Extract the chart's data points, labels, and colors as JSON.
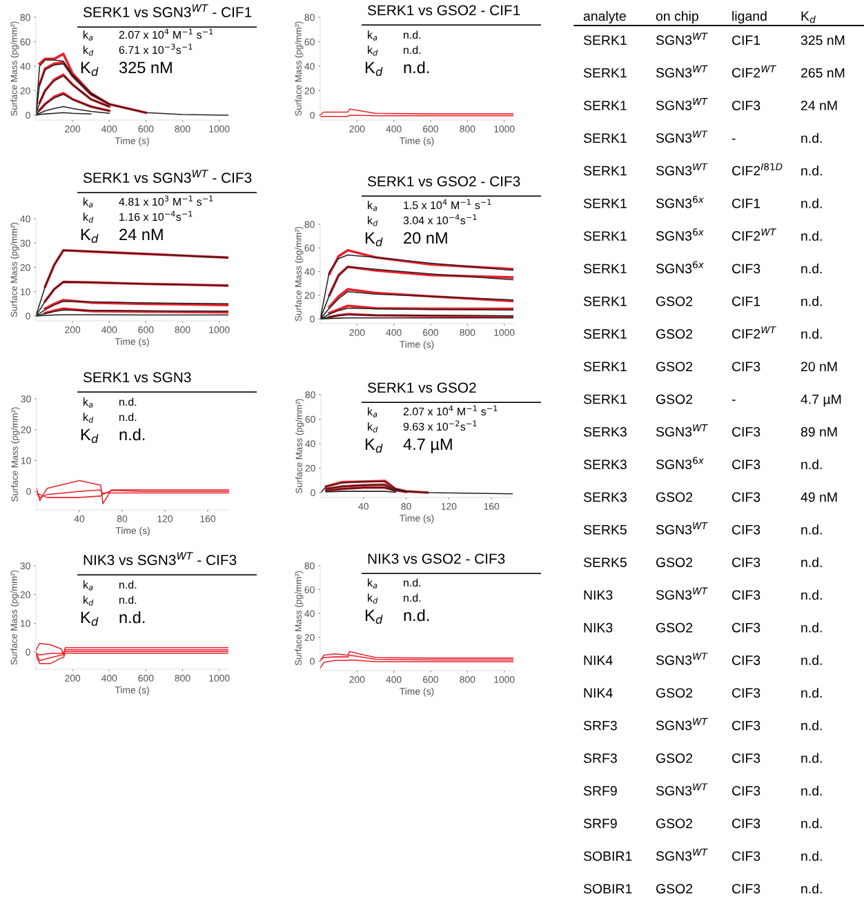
{
  "chart_data": [
    {
      "type": "line",
      "title": "SERK1 vs SGN3$^{WT}$ - CIF1",
      "xlabel": "Time (s)",
      "ylabel": "Surface Mass (pg/mm²)",
      "xlim": [
        0,
        1050
      ],
      "ylim": [
        -4,
        80
      ],
      "xticks": [
        200,
        400,
        600,
        800,
        1000
      ],
      "yticks": [
        0,
        20,
        40,
        60,
        80
      ],
      "annotations": [
        "k$_{a}$",
        "2.07 x 10$^{4}$ M$^{−1}$ s$^{−1}$",
        "k$_{d}$",
        "6.71 x 10$^{−3}$s$^{−1}$",
        "K$_{d}$",
        "325 nM"
      ],
      "x": [
        0,
        20,
        50,
        100,
        150,
        200,
        300,
        400,
        600,
        800,
        1050
      ],
      "series": [
        {
          "color": "#e8202a",
          "x": [
            20,
            50,
            100,
            150,
            200,
            300,
            400,
            600
          ],
          "values": [
            42,
            46,
            46,
            50,
            34,
            18,
            9,
            2
          ]
        },
        {
          "color": "#e8202a",
          "x": [
            20,
            50,
            100,
            150,
            200,
            300,
            400
          ],
          "values": [
            25,
            38,
            42,
            43,
            32,
            17,
            9
          ]
        },
        {
          "color": "#e8202a",
          "x": [
            20,
            50,
            100,
            150,
            200,
            300,
            400
          ],
          "values": [
            10,
            20,
            29,
            33,
            25,
            13,
            7
          ]
        },
        {
          "color": "#e8202a",
          "x": [
            20,
            50,
            100,
            150,
            200,
            300,
            400
          ],
          "values": [
            4,
            9,
            15,
            18,
            13,
            7,
            3.5
          ]
        },
        {
          "color": "#231f20",
          "values": [
            0,
            40,
            45,
            45,
            44,
            33,
            18,
            9,
            2,
            0.5,
            0
          ]
        },
        {
          "color": "#231f20",
          "values": [
            0,
            25,
            37,
            41,
            42,
            32,
            17,
            9,
            null,
            null,
            null
          ]
        },
        {
          "color": "#231f20",
          "values": [
            0,
            10,
            20,
            28,
            32,
            25,
            13,
            7,
            null,
            null,
            null
          ]
        },
        {
          "color": "#231f20",
          "values": [
            0,
            4,
            9,
            14,
            17,
            13,
            7,
            3.5,
            null,
            null,
            null
          ]
        },
        {
          "color": "#231f20",
          "values": [
            0,
            1.5,
            3.5,
            5.5,
            7,
            5.5,
            3,
            1.5,
            null,
            null,
            null
          ]
        },
        {
          "color": "#231f20",
          "values": [
            0,
            0.5,
            1,
            1.5,
            2,
            1.5,
            1,
            null,
            null,
            null,
            null
          ]
        }
      ]
    },
    {
      "type": "line",
      "title": "SERK1 vs GSO2 - CIF1",
      "xlabel": "Time (s)",
      "ylabel": "Surface Mass (pg/mm²)",
      "xlim": [
        0,
        1050
      ],
      "ylim": [
        -4,
        80
      ],
      "xticks": [
        200,
        400,
        600,
        800,
        1000
      ],
      "yticks": [
        0,
        20,
        40,
        60,
        80
      ],
      "annotations": [
        "k$_{a}$",
        "n.d.",
        "k$_{d}$",
        "n.d.",
        "K$_{d}$",
        "n.d."
      ],
      "x": [
        0,
        20,
        100,
        150,
        160,
        300,
        600,
        1050
      ],
      "series": [
        {
          "color": "#e8202a",
          "values": [
            0,
            2.5,
            2.5,
            2.5,
            5,
            1.5,
            1,
            1
          ]
        },
        {
          "color": "#e8202a",
          "values": [
            -1,
            -1,
            -1,
            -1,
            0,
            -0.5,
            -0.5,
            -0.5
          ]
        }
      ]
    },
    {
      "type": "line",
      "title": "SERK1 vs SGN3$^{WT}$ - CIF3",
      "xlabel": "Time (s)",
      "ylabel": "Surface Mass (pg/mm²)",
      "xlim": [
        0,
        1050
      ],
      "ylim": [
        -2,
        40
      ],
      "xticks": [
        200,
        400,
        600,
        800,
        1000
      ],
      "yticks": [
        0,
        10,
        20,
        30,
        40
      ],
      "annotations": [
        "k$_{a}$",
        "4.81 x 10$^{3}$ M$^{−1}$ s$^{−1}$",
        "k$_{d}$",
        "1.16 x 10$^{−4}$s$^{−1}$",
        "K$_{d}$",
        "24 nM"
      ],
      "x": [
        0,
        50,
        100,
        150,
        300,
        600,
        1050
      ],
      "series": [
        {
          "color": "#e8202a",
          "x": [
            50,
            100,
            150,
            300,
            600,
            1050
          ],
          "values": [
            12,
            21,
            27,
            26.5,
            25.5,
            24
          ]
        },
        {
          "color": "#e8202a",
          "x": [
            50,
            100,
            150,
            300,
            600,
            1050
          ],
          "values": [
            6,
            11,
            14,
            13.8,
            13.2,
            12.5
          ]
        },
        {
          "color": "#e8202a",
          "x": [
            50,
            100,
            150,
            300,
            600,
            1050
          ],
          "values": [
            3,
            5,
            6.5,
            5.5,
            5,
            4.5
          ]
        },
        {
          "color": "#e8202a",
          "x": [
            50,
            100,
            150,
            300,
            600,
            1050
          ],
          "values": [
            1.2,
            2.2,
            3,
            2,
            1.8,
            1.5
          ]
        },
        {
          "color": "#231f20",
          "values": [
            0,
            12,
            21,
            27,
            26.5,
            25.5,
            24
          ]
        },
        {
          "color": "#231f20",
          "values": [
            0,
            6,
            11,
            14,
            13.8,
            13.2,
            12.5
          ]
        },
        {
          "color": "#231f20",
          "values": [
            0,
            2.5,
            4.5,
            6,
            5.8,
            5.4,
            5
          ]
        },
        {
          "color": "#231f20",
          "values": [
            0,
            1,
            1.8,
            2.5,
            2.3,
            2.1,
            2
          ]
        },
        {
          "color": "#231f20",
          "values": [
            0,
            0.2,
            0.4,
            0.5,
            0.5,
            0.4,
            0.4
          ]
        }
      ]
    },
    {
      "type": "line",
      "title": "SERK1 vs GSO2 - CIF3",
      "xlabel": "Time (s)",
      "ylabel": "Surface Mass (pg/mm²)",
      "xlim": [
        0,
        1050
      ],
      "ylim": [
        -4,
        80
      ],
      "xticks": [
        200,
        400,
        600,
        800,
        1000
      ],
      "yticks": [
        0,
        20,
        40,
        60,
        80
      ],
      "annotations": [
        "k$_{a}$",
        "1.5 x 10$^{4}$ M$^{−1}$ s$^{−1}$",
        "k$_{d}$",
        "3.04 x 10$^{−4}$s$^{−1}$",
        "K$_{d}$",
        "20 nM"
      ],
      "x": [
        0,
        50,
        100,
        150,
        300,
        600,
        1050
      ],
      "series": [
        {
          "color": "#e8202a",
          "x": [
            50,
            100,
            150,
            300,
            600,
            1050
          ],
          "values": [
            38,
            53,
            58,
            52,
            46,
            42
          ]
        },
        {
          "color": "#e8202a",
          "x": [
            50,
            100,
            150,
            300,
            600,
            1050
          ],
          "values": [
            20,
            37,
            44,
            41,
            37,
            35
          ]
        },
        {
          "color": "#e8202a",
          "x": [
            50,
            100,
            150,
            300,
            600,
            1050
          ],
          "values": [
            10,
            19,
            25,
            22,
            19,
            15
          ]
        },
        {
          "color": "#e8202a",
          "x": [
            50,
            100,
            150,
            300,
            600,
            1050
          ],
          "values": [
            5,
            8,
            11,
            9,
            8.5,
            8.5
          ]
        },
        {
          "color": "#e8202a",
          "x": [
            50,
            100,
            150,
            300,
            600,
            1050
          ],
          "values": [
            1.5,
            3,
            4,
            3,
            2.5,
            2
          ]
        },
        {
          "color": "#231f20",
          "values": [
            0,
            40,
            51,
            54,
            52,
            47,
            41
          ]
        },
        {
          "color": "#231f20",
          "values": [
            0,
            20,
            36,
            44,
            42,
            38,
            33
          ]
        },
        {
          "color": "#231f20",
          "values": [
            0,
            9,
            17,
            23,
            21,
            19,
            16
          ]
        },
        {
          "color": "#231f20",
          "values": [
            0,
            4,
            7,
            9,
            8.6,
            8,
            7.5
          ]
        },
        {
          "color": "#231f20",
          "values": [
            0,
            1.5,
            3,
            3.5,
            3,
            2.8,
            2.5
          ]
        },
        {
          "color": "#231f20",
          "values": [
            0,
            0.3,
            0.6,
            0.8,
            0.8,
            0.8,
            0.8
          ]
        }
      ]
    },
    {
      "type": "line",
      "title": "SERK1 vs SGN3",
      "xlabel": "Time (s)",
      "ylabel": "Surface Mass (pg/mm²)",
      "xlim": [
        0,
        180
      ],
      "ylim": [
        -6,
        30
      ],
      "xticks": [
        40,
        80,
        120,
        160
      ],
      "yticks": [
        0,
        10,
        20,
        30
      ],
      "annotations": [
        "k$_{a}$",
        "n.d.",
        "k$_{d}$",
        "n.d.",
        "K$_{d}$",
        "n.d."
      ],
      "x": [
        0,
        3,
        10,
        40,
        60,
        62,
        70,
        100,
        180
      ],
      "series": [
        {
          "color": "#e8202a",
          "values": [
            1,
            -3,
            1,
            3.5,
            2,
            -4,
            0.5,
            0.5,
            0.5
          ]
        },
        {
          "color": "#e8202a",
          "values": [
            0,
            -2,
            -1,
            0,
            0.5,
            -1,
            0.3,
            0,
            0
          ]
        },
        {
          "color": "#e8202a",
          "values": [
            -1,
            -1,
            -2,
            -2,
            -1.5,
            -0.5,
            -0.5,
            -0.5,
            -0.5
          ]
        }
      ]
    },
    {
      "type": "line",
      "title": "SERK1 vs GSO2",
      "xlabel": "Time (s)",
      "ylabel": "Surface Mass (pg/mm²)",
      "xlim": [
        0,
        180
      ],
      "ylim": [
        -4,
        80
      ],
      "xticks": [
        40,
        80,
        120,
        160
      ],
      "yticks": [
        0,
        20,
        40,
        60,
        80
      ],
      "annotations": [
        "k$_{a}$",
        "2.07 x 10$^{4}$ M$^{−1}$ s$^{−1}$",
        "k$_{d}$",
        "9.63 x 10$^{−2}$s$^{−1}$",
        "K$_{d}$",
        "4.7 µM"
      ],
      "x": [
        0,
        5,
        20,
        40,
        60,
        70,
        80,
        100,
        180
      ],
      "series": [
        {
          "color": "#e8202a",
          "x": [
            5,
            20,
            40,
            60,
            70,
            80,
            100
          ],
          "values": [
            5,
            8.5,
            9,
            9.5,
            3,
            1,
            0
          ]
        },
        {
          "color": "#e8202a",
          "x": [
            5,
            20,
            40,
            60,
            70,
            80
          ],
          "values": [
            3,
            5,
            6,
            6.5,
            2,
            0.5
          ]
        },
        {
          "color": "#e8202a",
          "x": [
            5,
            20,
            40,
            60,
            70
          ],
          "values": [
            1.5,
            3,
            4,
            4,
            1.5
          ]
        },
        {
          "color": "#231f20",
          "values": [
            0,
            5,
            8,
            9,
            9,
            3,
            1,
            0,
            -1
          ]
        },
        {
          "color": "#231f20",
          "values": [
            null,
            3,
            5,
            6,
            6,
            2,
            0.5,
            null,
            null
          ]
        },
        {
          "color": "#231f20",
          "values": [
            null,
            1.5,
            3,
            4,
            4,
            1.5,
            null,
            null,
            null
          ]
        },
        {
          "color": "#231f20",
          "values": [
            null,
            0.5,
            1,
            1,
            1,
            0.3,
            null,
            null,
            null
          ]
        }
      ]
    },
    {
      "type": "line",
      "title": "NIK3 vs SGN3$^{WT}$ - CIF3",
      "xlabel": "Time (s)",
      "ylabel": "Surface Mass (pg/mm²)",
      "xlim": [
        0,
        1050
      ],
      "ylim": [
        -6,
        30
      ],
      "xticks": [
        200,
        400,
        600,
        800,
        1000
      ],
      "yticks": [
        0,
        10,
        20,
        30
      ],
      "annotations": [
        "k$_{a}$",
        "n.d.",
        "k$_{d}$",
        "n.d.",
        "K$_{d}$",
        "n.d."
      ],
      "x": [
        0,
        20,
        80,
        140,
        150,
        160,
        400,
        1050
      ],
      "series": [
        {
          "color": "#e8202a",
          "values": [
            0.5,
            3,
            2.5,
            1,
            -1,
            1.5,
            1.5,
            1.5
          ]
        },
        {
          "color": "#e8202a",
          "values": [
            0,
            -3,
            -2,
            -1,
            -1,
            0.8,
            0.8,
            0.8
          ]
        },
        {
          "color": "#e8202a",
          "values": [
            -0.5,
            -1,
            -0.5,
            -0.5,
            0,
            0.2,
            0.2,
            0.2
          ]
        },
        {
          "color": "#e8202a",
          "values": [
            -1,
            -4,
            -4,
            -2,
            -2,
            -0.4,
            -0.4,
            -0.4
          ]
        }
      ]
    },
    {
      "type": "line",
      "title": "NIK3 vs GSO2 - CIF3",
      "xlabel": "Time (s)",
      "ylabel": "Surface Mass (pg/mm²)",
      "xlim": [
        0,
        1050
      ],
      "ylim": [
        -8,
        80
      ],
      "xticks": [
        200,
        400,
        600,
        800,
        1000
      ],
      "yticks": [
        0,
        20,
        40,
        60,
        80
      ],
      "annotations": [
        "k$_{a}$",
        "n.d.",
        "k$_{d}$",
        "n.d.",
        "K$_{d}$",
        "n.d."
      ],
      "x": [
        0,
        20,
        80,
        150,
        160,
        300,
        600,
        1050
      ],
      "series": [
        {
          "color": "#e8202a",
          "values": [
            0,
            5,
            6,
            5,
            8,
            3,
            2.5,
            2.5
          ]
        },
        {
          "color": "#e8202a",
          "values": [
            1,
            3,
            3.5,
            3.5,
            5,
            1.5,
            1,
            1
          ]
        },
        {
          "color": "#e8202a",
          "values": [
            -6,
            -1,
            0.5,
            0.5,
            1,
            -0.5,
            -0.5,
            -0.5
          ]
        }
      ]
    },
    {
      "type": "other",
      "annotations": [
        "analyte",
        "on chip",
        "ligand",
        "K$_{d}$",
        "SERK1",
        "SGN3$^{WT}$",
        "CIF1",
        "325 nM",
        "SERK1",
        "SGN3$^{WT}$",
        "CIF2$^{WT}$",
        "265 nM",
        "SERK1",
        "SGN3$^{WT}$",
        "CIF3",
        "24 nM",
        "SERK1",
        "SGN3$^{WT}$",
        "-",
        "n.d.",
        "SERK1",
        "SGN3$^{WT}$",
        "CIF2$^{I81D}$",
        "n.d.",
        "SERK1",
        "SGN3$^{6x}$",
        "CIF1",
        "n.d.",
        "SERK1",
        "SGN3$^{6x}$",
        "CIF2$^{WT}$",
        "n.d.",
        "SERK1",
        "SGN3$^{6x}$",
        "CIF3",
        "n.d.",
        "SERK1",
        "GSO2",
        "CIF1",
        "n.d.",
        "SERK1",
        "GSO2",
        "CIF2$^{WT}$",
        "n.d.",
        "SERK1",
        "GSO2",
        "CIF3",
        "20 nM",
        "SERK1",
        "GSO2",
        "-",
        "4.7 µM",
        "SERK3",
        "SGN3$^{WT}$",
        "CIF3",
        "89 nM",
        "SERK3",
        "SGN3$^{6x}$",
        "CIF3",
        "n.d.",
        "SERK3",
        "GSO2",
        "CIF3",
        "49 nM",
        "SERK5",
        "SGN3$^{WT}$",
        "CIF3",
        "n.d.",
        "SERK5",
        "GSO2",
        "CIF3",
        "n.d.",
        "NIK3",
        "SGN3$^{WT}$",
        "CIF3",
        "n.d.",
        "NIK3",
        "GSO2",
        "CIF3",
        "n.d.",
        "NIK4",
        "SGN3$^{WT}$",
        "CIF3",
        "n.d.",
        "NIK4",
        "GSO2",
        "CIF3",
        "n.d.",
        "SRF3",
        "SGN3$^{WT}$",
        "CIF3",
        "n.d.",
        "SRF3",
        "GSO2",
        "CIF3",
        "n.d.",
        "SRF9",
        "SGN3$^{WT}$",
        "CIF3",
        "n.d.",
        "SRF9",
        "GSO2",
        "CIF3",
        "n.d.",
        "SOBIR1",
        "SGN3$^{WT}$",
        "CIF3",
        "n.d.",
        "SOBIR1",
        "GSO2",
        "CIF3",
        "n.d."
      ]
    }
  ]
}
